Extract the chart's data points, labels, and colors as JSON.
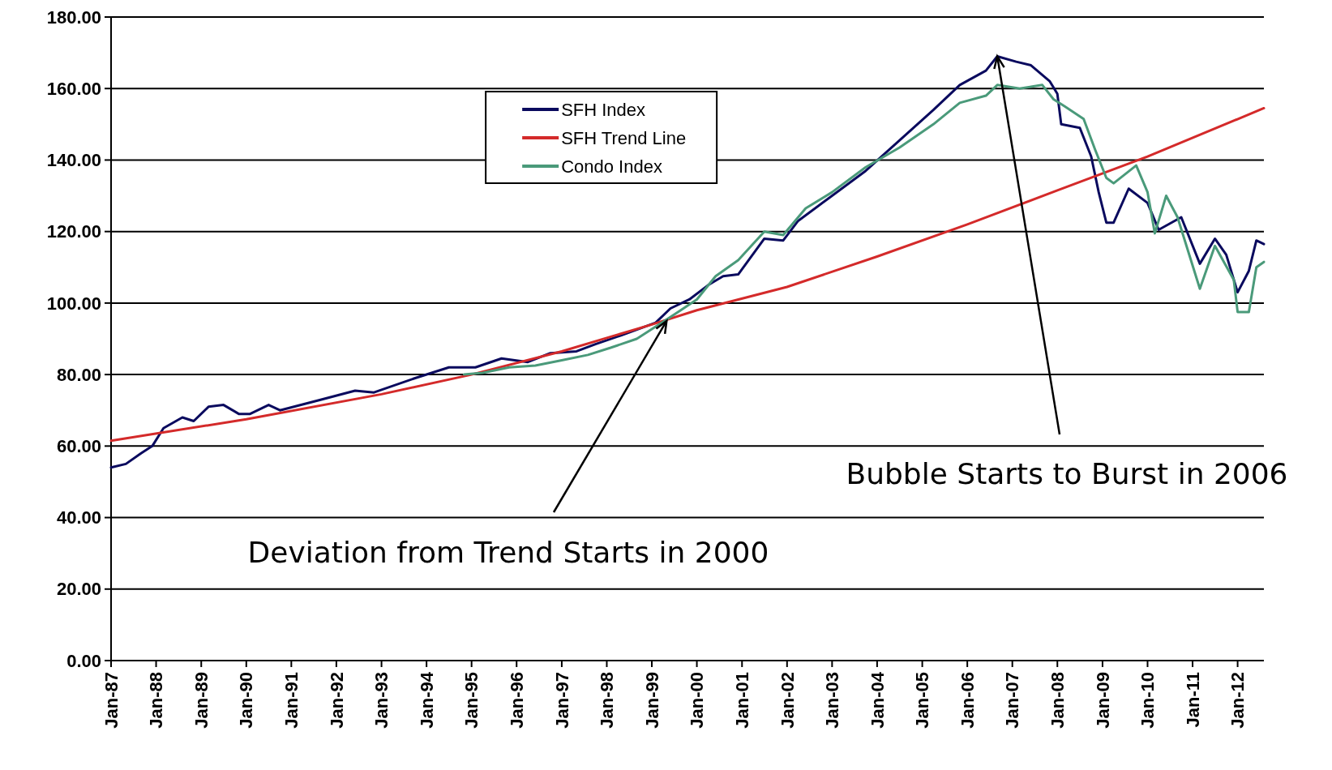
{
  "chart_data": {
    "type": "line",
    "xlim": [
      "1987-01",
      "2012-08"
    ],
    "ylim": [
      0,
      180
    ],
    "xticks": [
      {
        "value": "1987-01",
        "label": "Jan-87"
      },
      {
        "value": "1988-01",
        "label": "Jan-88"
      },
      {
        "value": "1989-01",
        "label": "Jan-89"
      },
      {
        "value": "1990-01",
        "label": "Jan-90"
      },
      {
        "value": "1991-01",
        "label": "Jan-91"
      },
      {
        "value": "1992-01",
        "label": "Jan-92"
      },
      {
        "value": "1993-01",
        "label": "Jan-93"
      },
      {
        "value": "1994-01",
        "label": "Jan-94"
      },
      {
        "value": "1995-01",
        "label": "Jan-95"
      },
      {
        "value": "1996-01",
        "label": "Jan-96"
      },
      {
        "value": "1997-01",
        "label": "Jan-97"
      },
      {
        "value": "1998-01",
        "label": "Jan-98"
      },
      {
        "value": "1999-01",
        "label": "Jan-99"
      },
      {
        "value": "2000-01",
        "label": "Jan-00"
      },
      {
        "value": "2001-01",
        "label": "Jan-01"
      },
      {
        "value": "2002-01",
        "label": "Jan-02"
      },
      {
        "value": "2003-01",
        "label": "Jan-03"
      },
      {
        "value": "2004-01",
        "label": "Jan-04"
      },
      {
        "value": "2005-01",
        "label": "Jan-05"
      },
      {
        "value": "2006-01",
        "label": "Jan-06"
      },
      {
        "value": "2007-01",
        "label": "Jan-07"
      },
      {
        "value": "2008-01",
        "label": "Jan-08"
      },
      {
        "value": "2009-01",
        "label": "Jan-09"
      },
      {
        "value": "2010-01",
        "label": "Jan-10"
      },
      {
        "value": "2011-01",
        "label": "Jan-11"
      },
      {
        "value": "2012-01",
        "label": "Jan-12"
      }
    ],
    "yticks": [
      {
        "value": 0,
        "label": "0.00"
      },
      {
        "value": 20,
        "label": "20.00"
      },
      {
        "value": 40,
        "label": "40.00"
      },
      {
        "value": 60,
        "label": "60.00"
      },
      {
        "value": 80,
        "label": "80.00"
      },
      {
        "value": 100,
        "label": "100.00"
      },
      {
        "value": 120,
        "label": "120.00"
      },
      {
        "value": 140,
        "label": "140.00"
      },
      {
        "value": 160,
        "label": "160.00"
      },
      {
        "value": 180,
        "label": "180.00"
      }
    ],
    "grid": "y",
    "legend": "top",
    "marker": "none",
    "line_style": "solid",
    "series": [
      {
        "name": "SFH Index",
        "color": "#0a0a5e",
        "x": [
          "1987-01",
          "1987-05",
          "1987-09",
          "1987-12",
          "1988-03",
          "1988-08",
          "1988-11",
          "1989-03",
          "1989-07",
          "1989-11",
          "1990-02",
          "1990-07",
          "1990-10",
          "1991-09",
          "1992-06",
          "1992-11",
          "1993-10",
          "1994-07",
          "1995-02",
          "1995-09",
          "1996-04",
          "1996-10",
          "1997-05",
          "1997-10",
          "1998-05",
          "1999-02",
          "1999-06",
          "1999-11",
          "2000-04",
          "2000-08",
          "2000-12",
          "2001-07",
          "2001-12",
          "2002-04",
          "2003-01",
          "2003-10",
          "2004-07",
          "2005-04",
          "2005-11",
          "2006-06",
          "2006-09",
          "2007-02",
          "2007-06",
          "2007-11",
          "2008-01",
          "2008-02",
          "2008-07",
          "2008-10",
          "2008-12",
          "2009-02",
          "2009-04",
          "2009-08",
          "2010-01",
          "2010-04",
          "2010-10",
          "2011-03",
          "2011-07",
          "2011-10",
          "2012-01",
          "2012-04",
          "2012-06",
          "2012-08"
        ],
        "values": [
          54,
          55,
          58,
          60,
          65,
          68,
          67,
          71,
          71.5,
          69,
          69,
          71.5,
          70,
          73,
          75.5,
          75,
          79,
          82,
          82,
          84.5,
          83.5,
          86,
          86.5,
          88.5,
          91,
          94.5,
          98.5,
          101,
          105,
          107.5,
          108,
          118,
          117.5,
          123,
          130,
          137,
          145.5,
          154,
          161,
          165,
          169,
          167.5,
          166.5,
          162,
          158.5,
          150,
          149,
          141,
          131,
          122.5,
          122.5,
          132,
          128,
          120.5,
          124,
          111,
          118,
          113.5,
          103,
          109,
          117.5,
          116.5
        ]
      },
      {
        "name": "SFH Trend Line",
        "color": "#d42a2a",
        "x": [
          "1987-01",
          "1990-01",
          "1993-01",
          "1995-01",
          "1997-01",
          "1999-01",
          "2000-01",
          "2002-01",
          "2004-01",
          "2006-01",
          "2008-01",
          "2010-01",
          "2012-08"
        ],
        "values": [
          61.5,
          67.5,
          74.5,
          80,
          86.5,
          94,
          98,
          104.5,
          113,
          122,
          131.5,
          141,
          154.5
        ]
      },
      {
        "name": "Condo Index",
        "color": "#4a9a7a",
        "x": [
          "1994-11",
          "1995-04",
          "1995-11",
          "1996-06",
          "1997-01",
          "1997-08",
          "1998-02",
          "1998-09",
          "1999-03",
          "1999-08",
          "2000-01",
          "2000-06",
          "2000-12",
          "2001-07",
          "2001-12",
          "2002-06",
          "2003-01",
          "2003-10",
          "2004-07",
          "2005-04",
          "2005-11",
          "2006-06",
          "2006-09",
          "2007-03",
          "2007-09",
          "2007-12",
          "2008-03",
          "2008-08",
          "2008-11",
          "2009-02",
          "2009-04",
          "2009-10",
          "2010-01",
          "2010-03",
          "2010-06",
          "2010-09",
          "2011-03",
          "2011-07",
          "2011-12",
          "2012-01",
          "2012-04",
          "2012-06",
          "2012-08"
        ],
        "values": [
          80,
          80.5,
          82,
          82.5,
          84,
          85.5,
          87.5,
          90,
          94,
          97.5,
          101,
          107.5,
          112,
          120,
          119,
          126.5,
          131,
          138,
          143.5,
          150,
          156,
          158,
          161,
          160,
          161,
          157,
          155,
          151.5,
          143,
          135,
          133.5,
          138.5,
          131,
          119.5,
          130,
          124,
          104,
          116,
          106.5,
          97.5,
          97.5,
          110,
          111.5
        ]
      }
    ],
    "annotations": [
      {
        "text": "Deviation from Trend Starts in 2000",
        "x": "1999-05",
        "y": 95
      },
      {
        "text": "Bubble Starts to Burst in 2006",
        "x": "2006-09",
        "y": 169
      }
    ]
  }
}
